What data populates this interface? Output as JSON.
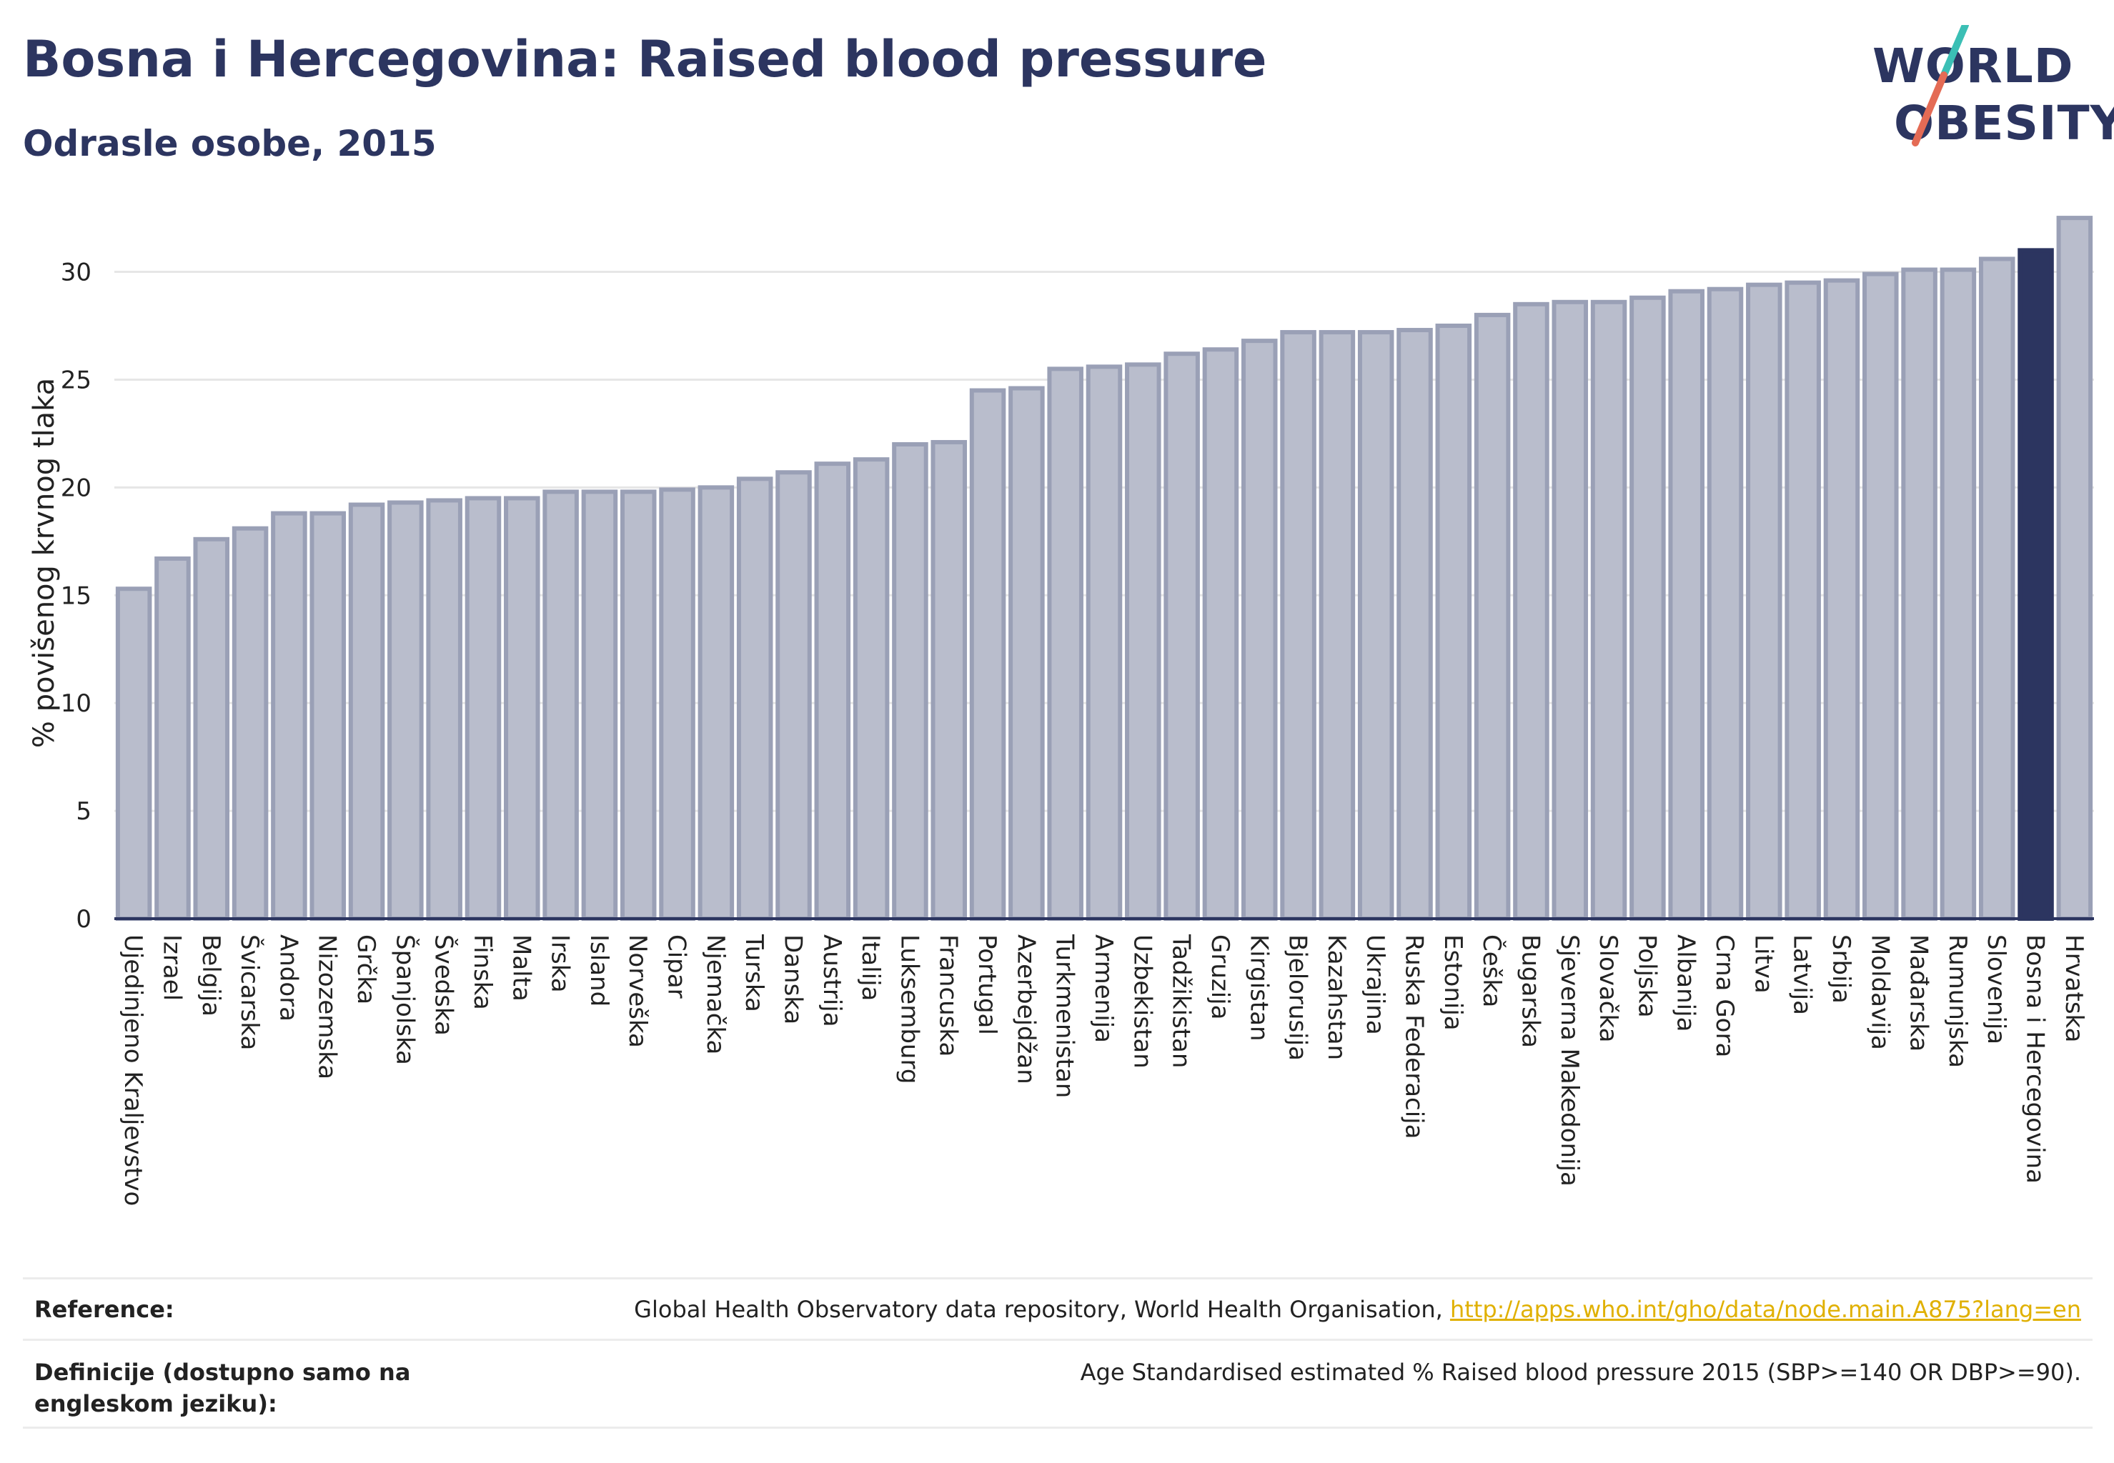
{
  "header": {
    "title": "Bosna i Hercegovina: Raised blood pressure",
    "subtitle": "Odrasle osobe, 2015"
  },
  "logo": {
    "line1": "WORLD",
    "line2": "OBESITY"
  },
  "colors": {
    "bar": "#b9bdcc",
    "bar_border": "#9aa0b6",
    "highlight": "#2c3560",
    "grid": "#e6e6e6",
    "title": "#2c3560",
    "link": "#e0b000"
  },
  "chart_data": {
    "type": "bar",
    "ylabel": "% povišenog krvnog tlaka",
    "xlabel": "",
    "ylim": [
      0,
      33
    ],
    "yticks": [
      0,
      5,
      10,
      15,
      20,
      25,
      30
    ],
    "grid": true,
    "highlight": "Bosna i Hercegovina",
    "categories": [
      "Ujedinjeno Kraljevstvo",
      "Izrael",
      "Belgija",
      "Švicarska",
      "Andora",
      "Nizozemska",
      "Grčka",
      "Španjolska",
      "Švedska",
      "Finska",
      "Malta",
      "Irska",
      "Island",
      "Norveška",
      "Cipar",
      "Njemačka",
      "Turska",
      "Danska",
      "Austrija",
      "Italija",
      "Luksemburg",
      "Francuska",
      "Portugal",
      "Azerbejdžan",
      "Turkmenistan",
      "Armenija",
      "Uzbekistan",
      "Tadžikistan",
      "Gruzija",
      "Kirgistan",
      "Bjelorusija",
      "Kazahstan",
      "Ukrajina",
      "Ruska Federacija",
      "Estonija",
      "Češka",
      "Bugarska",
      "Sjeverna Makedonija",
      "Slovačka",
      "Poljska",
      "Albanija",
      "Crna Gora",
      "Litva",
      "Latvija",
      "Srbija",
      "Moldavija",
      "Mađarska",
      "Rumunjska",
      "Slovenija",
      "Bosna i Hercegovina",
      "Hrvatska"
    ],
    "values": [
      15.3,
      16.7,
      17.6,
      18.1,
      18.8,
      18.8,
      19.2,
      19.3,
      19.4,
      19.5,
      19.5,
      19.8,
      19.8,
      19.8,
      19.9,
      20.0,
      20.4,
      20.7,
      21.1,
      21.3,
      22.0,
      22.1,
      24.5,
      24.6,
      25.5,
      25.6,
      25.7,
      26.2,
      26.4,
      26.8,
      27.2,
      27.2,
      27.2,
      27.3,
      27.5,
      28.0,
      28.5,
      28.6,
      28.6,
      28.8,
      29.1,
      29.2,
      29.4,
      29.5,
      29.6,
      29.9,
      30.1,
      30.1,
      30.6,
      31.0,
      32.5
    ]
  },
  "footer": {
    "reference_label": "Reference:",
    "reference_text": "Global Health Observatory data repository, World Health Organisation, ",
    "reference_link": "http://apps.who.int/gho/data/node.main.A875?lang=en",
    "definition_label": "Definicije (dostupno samo na engleskom jeziku):",
    "definition_text": "Age Standardised estimated % Raised blood pressure 2015 (SBP>=140 OR DBP>=90)."
  }
}
